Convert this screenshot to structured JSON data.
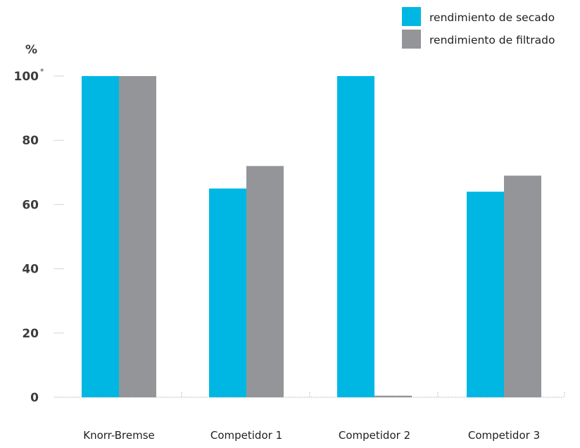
{
  "chart_data": {
    "type": "bar",
    "ylabel": "%",
    "ylim": [
      0,
      100
    ],
    "yticks": [
      {
        "value": 0,
        "label": "0"
      },
      {
        "value": 20,
        "label": "20"
      },
      {
        "value": 40,
        "label": "40"
      },
      {
        "value": 60,
        "label": "60"
      },
      {
        "value": 80,
        "label": "80"
      },
      {
        "value": 100,
        "label": "100",
        "mark": "*"
      }
    ],
    "categories": [
      "Knorr-Bremse",
      "Competidor 1",
      "Competidor 2",
      "Competidor 3"
    ],
    "series": [
      {
        "name": "rendimiento de secado",
        "color": "#00b7e3",
        "values": [
          100,
          65,
          100,
          64
        ]
      },
      {
        "name": "rendimiento de filtrado",
        "color": "#949599",
        "values": [
          100,
          72,
          0.5,
          69
        ]
      }
    ],
    "legend_position": "top-right",
    "grid": false
  }
}
